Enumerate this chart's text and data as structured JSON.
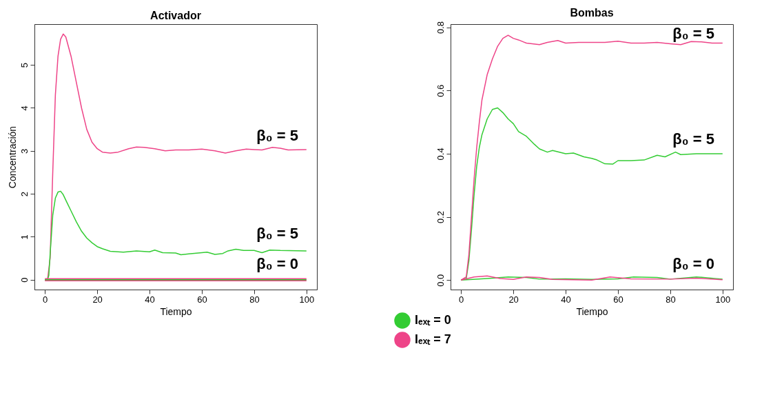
{
  "chart_data": [
    {
      "type": "line",
      "title": "Activador",
      "xlabel": "Tiempo",
      "ylabel": "Concentración",
      "grid": false,
      "xlim": [
        -4,
        104
      ],
      "xticks": [
        0,
        20,
        40,
        60,
        80,
        100
      ],
      "ylim": [
        -0.23,
        5.95
      ],
      "yticks": [
        0,
        1,
        2,
        3,
        4,
        5
      ],
      "annotations": [
        "β₀ = 5",
        "β₀ = 5",
        "β₀ = 0"
      ],
      "series": [
        {
          "color": "#ee4488",
          "x": [
            0,
            1,
            2,
            3,
            4,
            5,
            6,
            7,
            8,
            10,
            12,
            14,
            16,
            18,
            20,
            22,
            25,
            28,
            32,
            35,
            38,
            42,
            46,
            50,
            55,
            60,
            65,
            69,
            73,
            77,
            80,
            83,
            87,
            90,
            93,
            100
          ],
          "values": [
            0,
            0,
            0.5,
            2.5,
            4.3,
            5.2,
            5.6,
            5.72,
            5.65,
            5.2,
            4.6,
            4.0,
            3.5,
            3.2,
            3.05,
            2.97,
            2.95,
            2.97,
            3.05,
            3.09,
            3.08,
            3.05,
            3.0,
            3.02,
            3.02,
            3.04,
            3.0,
            2.95,
            3.0,
            3.04,
            3.03,
            3.02,
            3.08,
            3.06,
            3.02,
            3.03
          ]
        },
        {
          "color": "#33cc33",
          "x": [
            0,
            1,
            1.5,
            2,
            3,
            4,
            5,
            6,
            7,
            8,
            10,
            12,
            14,
            16,
            18,
            20,
            22,
            25,
            30,
            35,
            40,
            42,
            45,
            50,
            52,
            55,
            60,
            62,
            65,
            68,
            70,
            73,
            76,
            80,
            83,
            86,
            90,
            100
          ],
          "values": [
            0,
            0,
            0.1,
            0.6,
            1.5,
            1.9,
            2.04,
            2.06,
            1.98,
            1.85,
            1.6,
            1.35,
            1.13,
            0.97,
            0.86,
            0.77,
            0.72,
            0.66,
            0.64,
            0.67,
            0.65,
            0.69,
            0.63,
            0.62,
            0.58,
            0.6,
            0.63,
            0.64,
            0.59,
            0.61,
            0.67,
            0.71,
            0.68,
            0.68,
            0.63,
            0.69,
            0.68,
            0.67
          ]
        },
        {
          "color": "#ee4488",
          "x": [
            0,
            25,
            50,
            75,
            100
          ],
          "values": [
            0,
            0,
            0,
            0,
            0
          ]
        },
        {
          "color": "#33cc33",
          "x": [
            0,
            25,
            50,
            75,
            100
          ],
          "values": [
            0,
            0,
            0,
            0,
            0
          ]
        }
      ]
    },
    {
      "type": "line",
      "title": "Bombas",
      "xlabel": "Tiempo",
      "grid": false,
      "legend": "bottom left",
      "xlim": [
        -4,
        104
      ],
      "xticks": [
        0,
        20,
        40,
        60,
        80,
        100
      ],
      "ylim": [
        -0.03,
        0.81
      ],
      "yticks": [
        {
          "value": 0,
          "label": "0.0"
        },
        0.2,
        0.4,
        0.6,
        0.8
      ],
      "annotations": [
        "β₀ = 5",
        "β₀ = 5",
        "β₀ = 0"
      ],
      "series": [
        {
          "name": "Iₑₓₜ = 0",
          "color": "#33cc33",
          "x": [
            0,
            2,
            3,
            4,
            5,
            6,
            7,
            8,
            10,
            12,
            14,
            16,
            18,
            20,
            22,
            25,
            28,
            30,
            33,
            35,
            40,
            43,
            47,
            50,
            52,
            55,
            58,
            60,
            65,
            70,
            75,
            78,
            82,
            84,
            90,
            100
          ],
          "values": [
            0,
            0.005,
            0.06,
            0.16,
            0.27,
            0.36,
            0.42,
            0.46,
            0.51,
            0.54,
            0.545,
            0.53,
            0.51,
            0.495,
            0.47,
            0.455,
            0.43,
            0.415,
            0.405,
            0.41,
            0.4,
            0.402,
            0.39,
            0.385,
            0.38,
            0.368,
            0.367,
            0.378,
            0.378,
            0.38,
            0.395,
            0.39,
            0.405,
            0.397,
            0.4,
            0.4
          ]
        },
        {
          "name": "Iₑₓₜ = 7",
          "color": "#ee4488",
          "x": [
            0,
            2,
            3,
            4,
            5,
            6,
            7,
            8,
            10,
            12,
            14,
            16,
            18,
            20,
            22,
            25,
            30,
            33,
            37,
            40,
            45,
            50,
            55,
            60,
            65,
            70,
            75,
            80,
            84,
            88,
            92,
            96,
            100
          ],
          "values": [
            0,
            0.01,
            0.08,
            0.2,
            0.32,
            0.42,
            0.5,
            0.57,
            0.65,
            0.7,
            0.74,
            0.765,
            0.775,
            0.765,
            0.76,
            0.75,
            0.745,
            0.752,
            0.758,
            0.75,
            0.752,
            0.752,
            0.752,
            0.756,
            0.75,
            0.75,
            0.752,
            0.748,
            0.745,
            0.755,
            0.754,
            0.75,
            0.75
          ]
        },
        {
          "color": "#33cc33",
          "x": [
            0,
            10,
            18,
            25,
            30,
            40,
            50,
            60,
            66,
            75,
            80,
            90,
            100
          ],
          "values": [
            0,
            0.005,
            0.01,
            0.008,
            0.003,
            0.004,
            0.002,
            0.004,
            0.01,
            0.008,
            0.003,
            0.01,
            0.003
          ]
        },
        {
          "color": "#ee4488",
          "x": [
            0,
            5,
            10,
            15,
            20,
            25,
            30,
            35,
            50,
            57,
            65,
            80,
            90,
            100
          ],
          "values": [
            0,
            0.01,
            0.013,
            0.005,
            0.002,
            0.01,
            0.008,
            0.002,
            0,
            0.01,
            0.004,
            0.003,
            0.006,
            0.001
          ]
        }
      ]
    }
  ]
}
